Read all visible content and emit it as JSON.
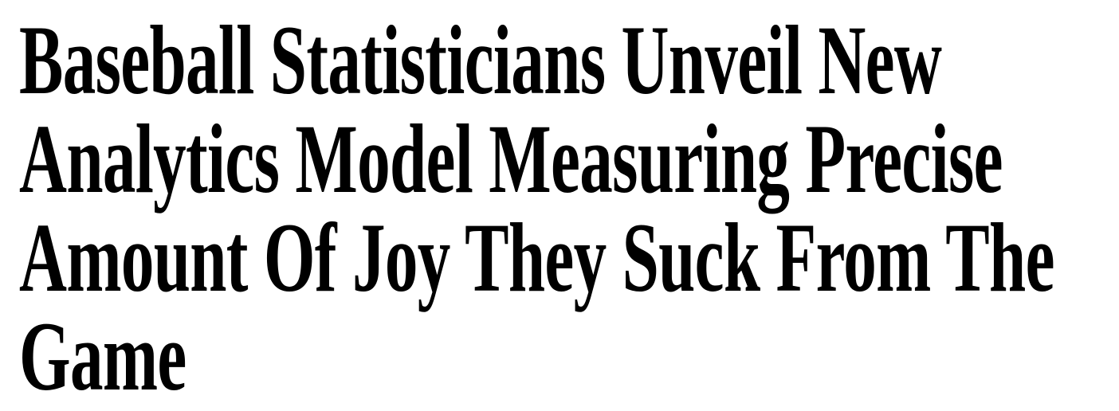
{
  "headline": {
    "lines": [
      "Baseball Statisticians Unveil New",
      "Analytics Model Measuring Precise",
      "Amount Of Joy They Suck From The",
      "Game"
    ]
  }
}
